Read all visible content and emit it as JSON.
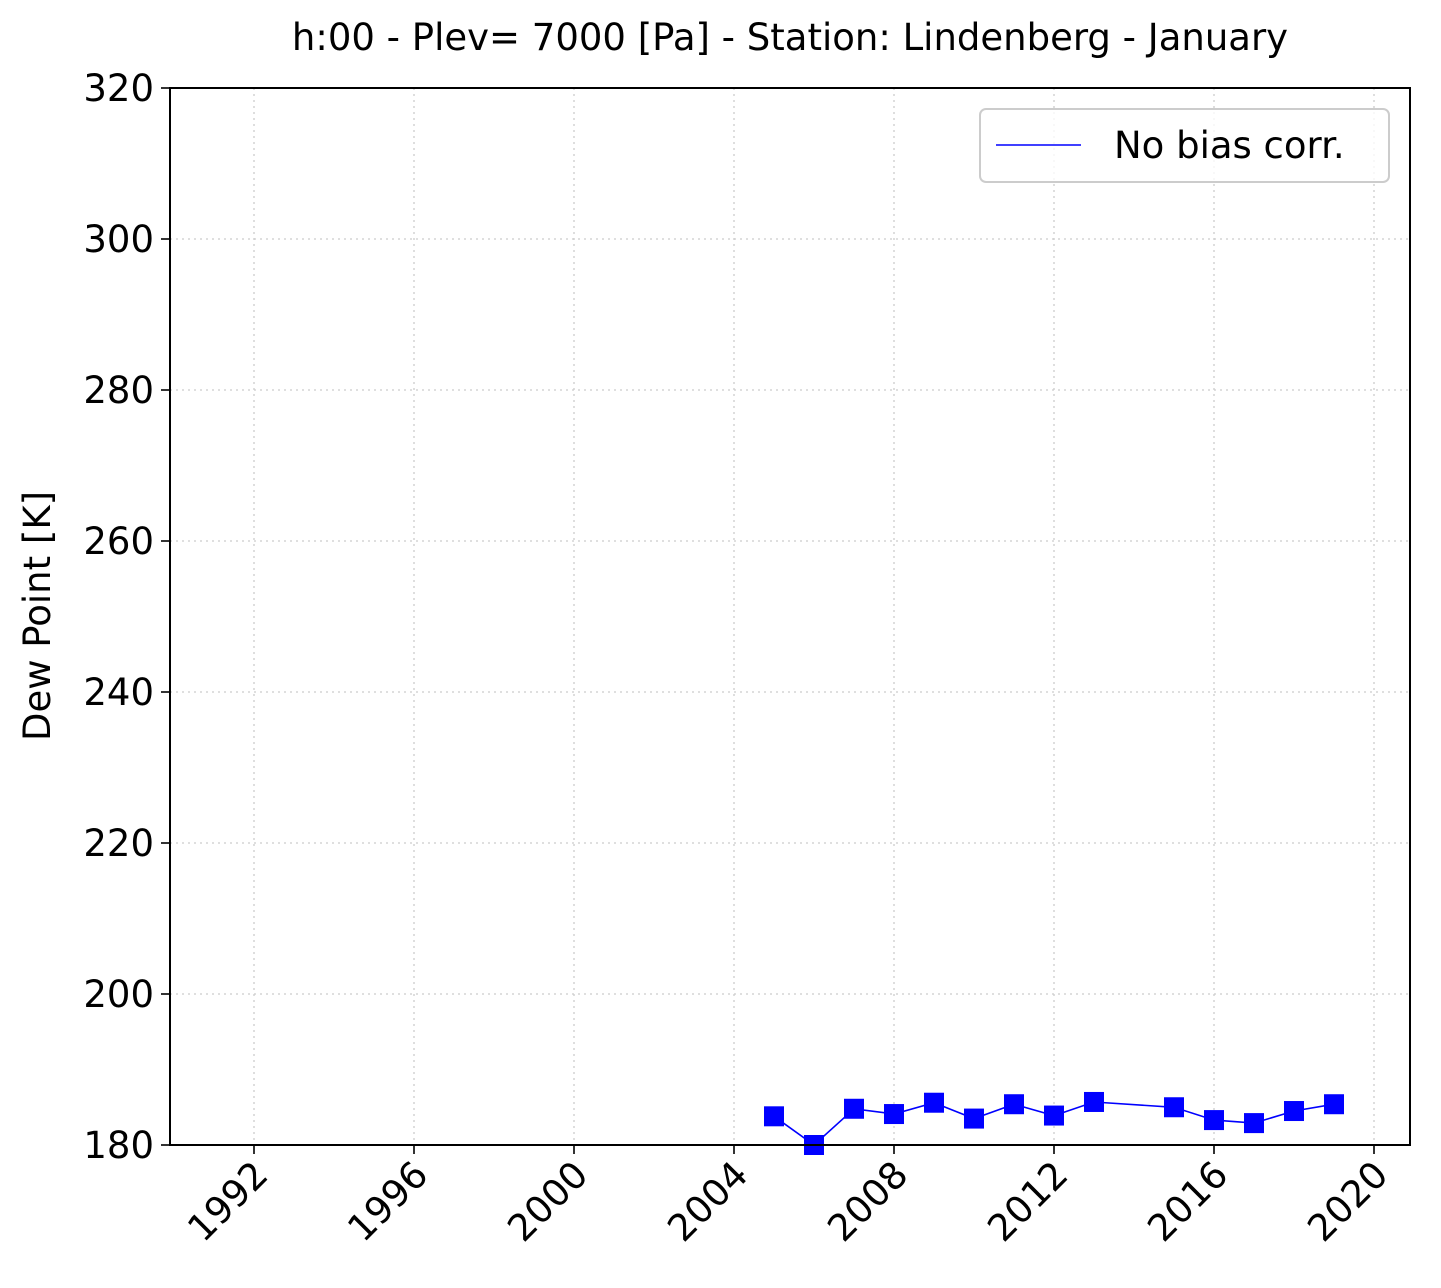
{
  "chart_data": {
    "type": "line",
    "title": "h:00 - Plev= 7000 [Pa] - Station: Lindenberg - January",
    "xlabel": "",
    "ylabel": "Dew Point [K]",
    "xlim": [
      1989.9,
      2020.9
    ],
    "ylim": [
      180,
      320
    ],
    "xticks": [
      1992,
      1996,
      2000,
      2004,
      2008,
      2012,
      2016,
      2020
    ],
    "yticks": [
      180,
      200,
      220,
      240,
      260,
      280,
      300,
      320
    ],
    "grid": true,
    "legend_position": "top-right",
    "series": [
      {
        "name": "No bias corr.",
        "color": "#0000ff",
        "marker": "square",
        "x": [
          2005,
          2006,
          2007,
          2008,
          2009,
          2010,
          2011,
          2012,
          2013,
          2015,
          2016,
          2017,
          2018,
          2019
        ],
        "y": [
          183.8,
          180.0,
          184.8,
          184.1,
          185.6,
          183.5,
          185.4,
          183.9,
          185.7,
          185.0,
          183.3,
          182.9,
          184.5,
          185.4
        ]
      }
    ]
  }
}
